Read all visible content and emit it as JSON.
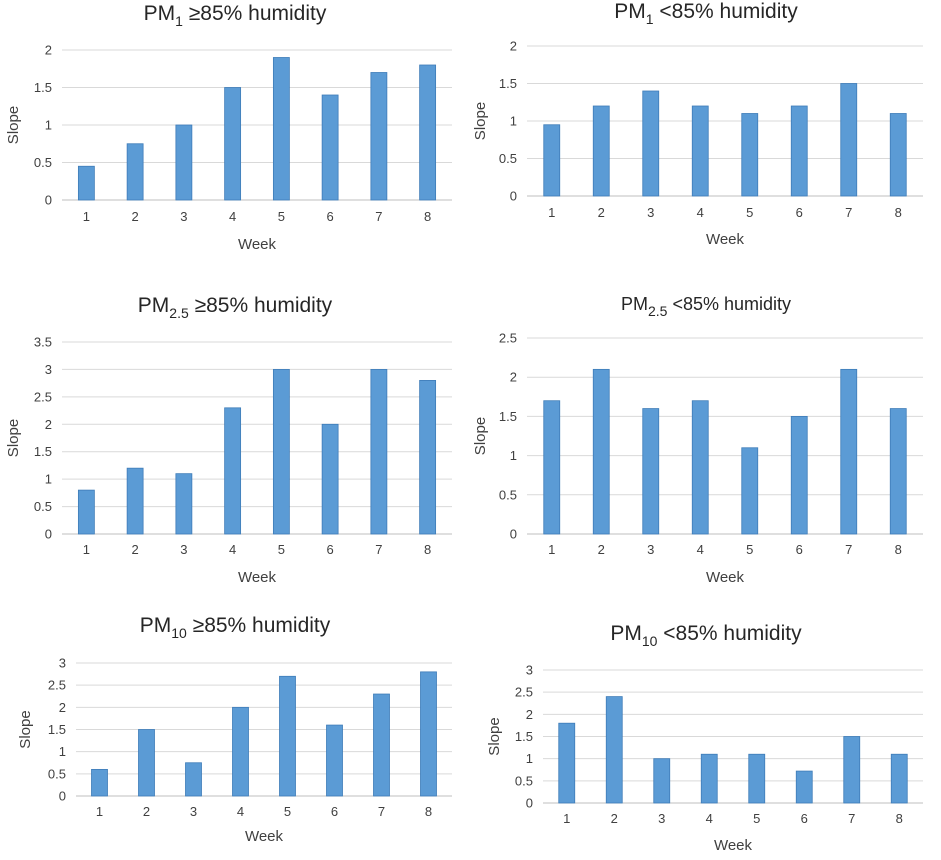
{
  "colors": {
    "bar": "#5B9BD5",
    "bar_edge": "#3E7CB8",
    "grid": "#D9D9D9",
    "axis": "#BFBFBF"
  },
  "chart_data": [
    {
      "type": "bar",
      "title_main": "PM",
      "title_sub": "1",
      "title_rest": " ≥85% humidity",
      "xlabel": "Week",
      "ylabel": "Slope",
      "categories": [
        "1",
        "2",
        "3",
        "4",
        "5",
        "6",
        "7",
        "8"
      ],
      "values": [
        0.45,
        0.75,
        1.0,
        1.5,
        1.9,
        1.4,
        1.7,
        1.8
      ],
      "ylim": [
        0,
        2
      ],
      "yticks": [
        "0",
        "0.5",
        "1",
        "1.5",
        "2"
      ],
      "grid": true
    },
    {
      "type": "bar",
      "title_main": "PM",
      "title_sub": "1",
      "title_rest": " <85% humidity",
      "xlabel": "Week",
      "ylabel": "Slope",
      "categories": [
        "1",
        "2",
        "3",
        "4",
        "5",
        "6",
        "7",
        "8"
      ],
      "values": [
        0.95,
        1.2,
        1.4,
        1.2,
        1.1,
        1.2,
        1.5,
        1.1
      ],
      "ylim": [
        0,
        2
      ],
      "yticks": [
        "0",
        "0.5",
        "1",
        "1.5",
        "2"
      ],
      "grid": true
    },
    {
      "type": "bar",
      "title_main": "PM",
      "title_sub": "2.5",
      "title_rest": " ≥85% humidity",
      "xlabel": "Week",
      "ylabel": "Slope",
      "categories": [
        "1",
        "2",
        "3",
        "4",
        "5",
        "6",
        "7",
        "8"
      ],
      "values": [
        0.8,
        1.2,
        1.1,
        2.3,
        3.0,
        2.0,
        3.0,
        2.8
      ],
      "ylim": [
        0,
        3.5
      ],
      "yticks": [
        "0",
        "0.5",
        "1",
        "1.5",
        "2",
        "2.5",
        "3",
        "3.5"
      ],
      "grid": true
    },
    {
      "type": "bar",
      "title_main": "PM",
      "title_sub": "2.5",
      "title_rest": " <85% humidity",
      "xlabel": "Week",
      "ylabel": "Slope",
      "categories": [
        "1",
        "2",
        "3",
        "4",
        "5",
        "6",
        "7",
        "8"
      ],
      "values": [
        1.7,
        2.1,
        1.6,
        1.7,
        1.1,
        1.5,
        2.1,
        1.6
      ],
      "ylim": [
        0,
        2.5
      ],
      "yticks": [
        "0",
        "0.5",
        "1",
        "1.5",
        "2",
        "2.5"
      ],
      "grid": true
    },
    {
      "type": "bar",
      "title_main": "PM",
      "title_sub": "10",
      "title_rest": " ≥85% humidity",
      "xlabel": "Week",
      "ylabel": "Slope",
      "categories": [
        "1",
        "2",
        "3",
        "4",
        "5",
        "6",
        "7",
        "8"
      ],
      "values": [
        0.6,
        1.5,
        0.75,
        2.0,
        2.7,
        1.6,
        2.3,
        2.8
      ],
      "ylim": [
        0,
        3
      ],
      "yticks": [
        "0",
        "0.5",
        "1",
        "1.5",
        "2",
        "2.5",
        "3"
      ],
      "grid": true
    },
    {
      "type": "bar",
      "title_main": "PM",
      "title_sub": "10",
      "title_rest": " <85% humidity",
      "xlabel": "Week",
      "ylabel": "Slope",
      "categories": [
        "1",
        "2",
        "3",
        "4",
        "5",
        "6",
        "7",
        "8"
      ],
      "values": [
        1.8,
        2.4,
        1.0,
        1.1,
        1.1,
        0.72,
        1.5,
        1.1
      ],
      "ylim": [
        0,
        3
      ],
      "yticks": [
        "0",
        "0.5",
        "1",
        "1.5",
        "2",
        "2.5",
        "3"
      ],
      "grid": true
    }
  ]
}
